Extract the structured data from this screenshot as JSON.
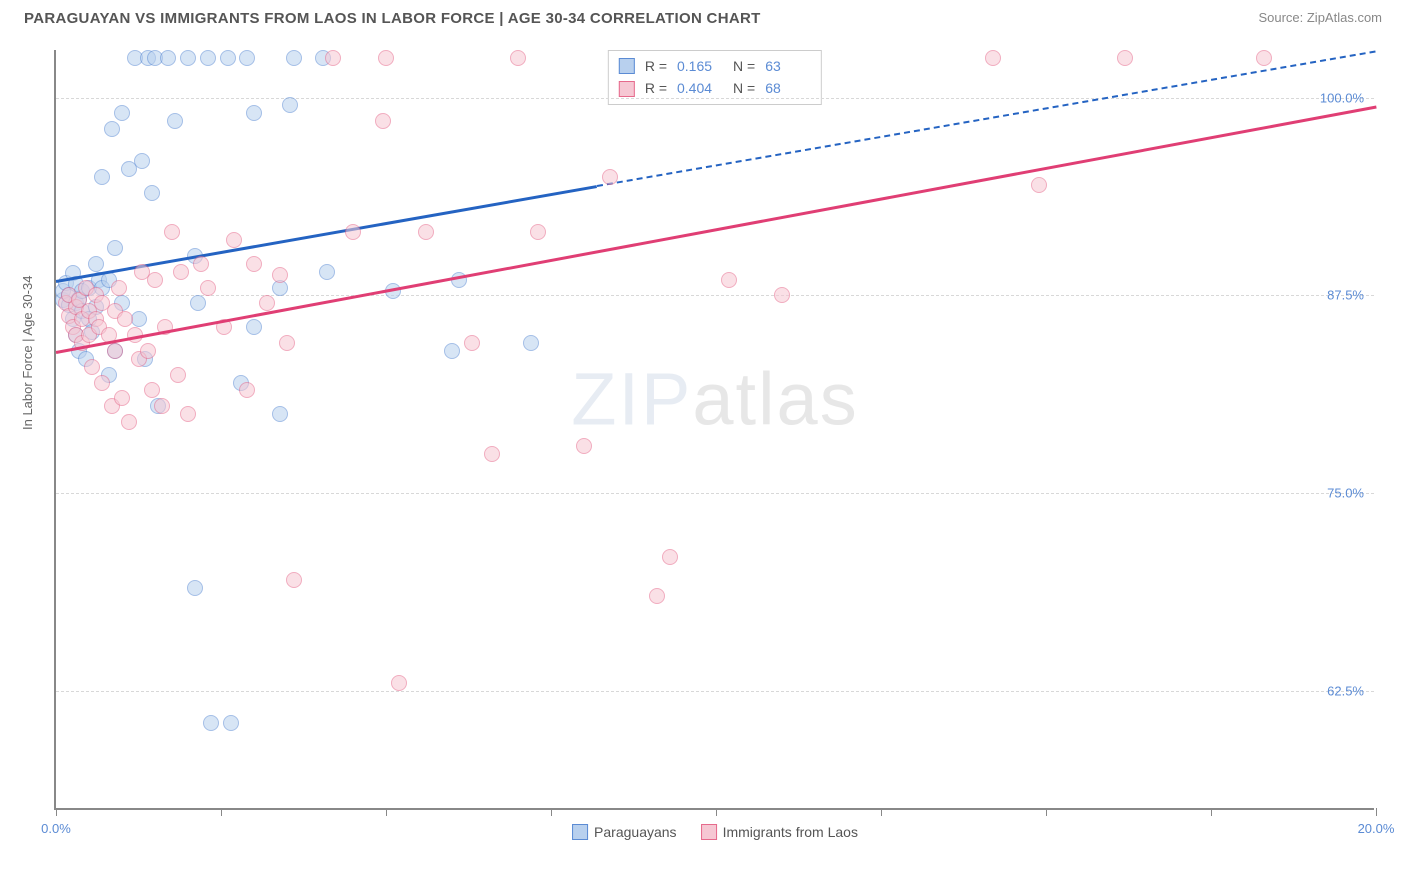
{
  "header": {
    "title": "PARAGUAYAN VS IMMIGRANTS FROM LAOS IN LABOR FORCE | AGE 30-34 CORRELATION CHART",
    "source": "Source: ZipAtlas.com"
  },
  "chart": {
    "type": "scatter",
    "ylabel": "In Labor Force | Age 30-34",
    "watermark_a": "ZIP",
    "watermark_b": "atlas",
    "xlim": [
      0,
      20
    ],
    "ylim": [
      55,
      103
    ],
    "ytick_values": [
      62.5,
      75.0,
      87.5,
      100.0
    ],
    "ytick_labels": [
      "62.5%",
      "75.0%",
      "87.5%",
      "100.0%"
    ],
    "xtick_values": [
      0,
      2.5,
      5,
      7.5,
      10,
      12.5,
      15,
      17.5,
      20
    ],
    "xlabel_min": "0.0%",
    "xlabel_max": "20.0%",
    "background_color": "#ffffff",
    "grid_color": "#d8d8d8",
    "series": [
      {
        "name": "Paraguayans",
        "fill": "#b8d0ee",
        "stroke": "#5b8bd4",
        "line_color": "#2463c2",
        "R": "0.165",
        "N": "63",
        "trend": {
          "x1": 0,
          "y1": 88.5,
          "x2": 8.2,
          "y2": 94.5
        },
        "trend_ext": {
          "x1": 8.2,
          "y1": 94.5,
          "x2": 20,
          "y2": 103
        },
        "points": [
          [
            0.1,
            87.2
          ],
          [
            0.1,
            87.8
          ],
          [
            0.15,
            88.3
          ],
          [
            0.2,
            86.9
          ],
          [
            0.2,
            87.5
          ],
          [
            0.25,
            86.0
          ],
          [
            0.25,
            88.9
          ],
          [
            0.3,
            85.0
          ],
          [
            0.3,
            87.0
          ],
          [
            0.3,
            88.2
          ],
          [
            0.35,
            84.0
          ],
          [
            0.35,
            87.3
          ],
          [
            0.4,
            86.5
          ],
          [
            0.4,
            87.8
          ],
          [
            0.45,
            83.5
          ],
          [
            0.5,
            86.0
          ],
          [
            0.5,
            88.0
          ],
          [
            0.55,
            85.2
          ],
          [
            0.6,
            89.5
          ],
          [
            0.6,
            86.8
          ],
          [
            0.65,
            88.5
          ],
          [
            0.7,
            95.0
          ],
          [
            0.7,
            88.0
          ],
          [
            0.8,
            82.5
          ],
          [
            0.8,
            88.5
          ],
          [
            0.85,
            98.0
          ],
          [
            0.9,
            90.5
          ],
          [
            0.9,
            84.0
          ],
          [
            1.0,
            87.0
          ],
          [
            1.0,
            99.0
          ],
          [
            1.1,
            95.5
          ],
          [
            1.2,
            102.5
          ],
          [
            1.25,
            86.0
          ],
          [
            1.3,
            96.0
          ],
          [
            1.35,
            83.5
          ],
          [
            1.4,
            102.5
          ],
          [
            1.45,
            94.0
          ],
          [
            1.5,
            102.5
          ],
          [
            1.55,
            80.5
          ],
          [
            1.7,
            102.5
          ],
          [
            1.8,
            98.5
          ],
          [
            2.0,
            102.5
          ],
          [
            2.1,
            69.0
          ],
          [
            2.1,
            90.0
          ],
          [
            2.15,
            87.0
          ],
          [
            2.3,
            102.5
          ],
          [
            2.35,
            60.5
          ],
          [
            2.6,
            102.5
          ],
          [
            2.65,
            60.5
          ],
          [
            2.8,
            82.0
          ],
          [
            2.9,
            102.5
          ],
          [
            3.0,
            99.0
          ],
          [
            3.0,
            85.5
          ],
          [
            3.4,
            80.0
          ],
          [
            3.4,
            88.0
          ],
          [
            3.55,
            99.5
          ],
          [
            3.6,
            102.5
          ],
          [
            4.05,
            102.5
          ],
          [
            4.1,
            89.0
          ],
          [
            5.1,
            87.8
          ],
          [
            6.0,
            84.0
          ],
          [
            6.1,
            88.5
          ],
          [
            7.2,
            84.5
          ]
        ]
      },
      {
        "name": "Immigrants from Laos",
        "fill": "#f6c7d3",
        "stroke": "#e66a8c",
        "line_color": "#e03e74",
        "R": "0.404",
        "N": "68",
        "trend": {
          "x1": 0,
          "y1": 84.0,
          "x2": 20,
          "y2": 99.5
        },
        "points": [
          [
            0.15,
            87.0
          ],
          [
            0.2,
            86.2
          ],
          [
            0.2,
            87.5
          ],
          [
            0.25,
            85.5
          ],
          [
            0.3,
            86.8
          ],
          [
            0.3,
            85.0
          ],
          [
            0.35,
            87.2
          ],
          [
            0.4,
            84.5
          ],
          [
            0.4,
            86.0
          ],
          [
            0.45,
            88.0
          ],
          [
            0.5,
            85.0
          ],
          [
            0.5,
            86.5
          ],
          [
            0.55,
            83.0
          ],
          [
            0.6,
            86.0
          ],
          [
            0.6,
            87.5
          ],
          [
            0.65,
            85.5
          ],
          [
            0.7,
            82.0
          ],
          [
            0.7,
            87.0
          ],
          [
            0.8,
            85.0
          ],
          [
            0.85,
            80.5
          ],
          [
            0.9,
            86.5
          ],
          [
            0.9,
            84.0
          ],
          [
            0.95,
            88.0
          ],
          [
            1.0,
            81.0
          ],
          [
            1.05,
            86.0
          ],
          [
            1.1,
            79.5
          ],
          [
            1.2,
            85.0
          ],
          [
            1.25,
            83.5
          ],
          [
            1.3,
            89.0
          ],
          [
            1.4,
            84.0
          ],
          [
            1.45,
            81.5
          ],
          [
            1.5,
            88.5
          ],
          [
            1.6,
            80.5
          ],
          [
            1.65,
            85.5
          ],
          [
            1.75,
            91.5
          ],
          [
            1.85,
            82.5
          ],
          [
            1.9,
            89.0
          ],
          [
            2.0,
            80.0
          ],
          [
            2.2,
            89.5
          ],
          [
            2.3,
            88.0
          ],
          [
            2.55,
            85.5
          ],
          [
            2.7,
            91.0
          ],
          [
            2.9,
            81.5
          ],
          [
            3.0,
            89.5
          ],
          [
            3.2,
            87.0
          ],
          [
            3.4,
            88.8
          ],
          [
            3.5,
            84.5
          ],
          [
            3.6,
            69.5
          ],
          [
            4.2,
            102.5
          ],
          [
            4.5,
            91.5
          ],
          [
            4.95,
            98.5
          ],
          [
            5.0,
            102.5
          ],
          [
            5.2,
            63.0
          ],
          [
            5.6,
            91.5
          ],
          [
            6.3,
            84.5
          ],
          [
            6.6,
            77.5
          ],
          [
            7.0,
            102.5
          ],
          [
            7.3,
            91.5
          ],
          [
            8.0,
            78.0
          ],
          [
            8.4,
            95.0
          ],
          [
            9.1,
            68.5
          ],
          [
            9.3,
            71.0
          ],
          [
            10.2,
            88.5
          ],
          [
            11.0,
            87.5
          ],
          [
            14.2,
            102.5
          ],
          [
            14.9,
            94.5
          ],
          [
            16.2,
            102.5
          ],
          [
            18.3,
            102.5
          ]
        ]
      }
    ]
  },
  "legend": {
    "s1": "Paraguayans",
    "s2": "Immigrants from Laos"
  }
}
